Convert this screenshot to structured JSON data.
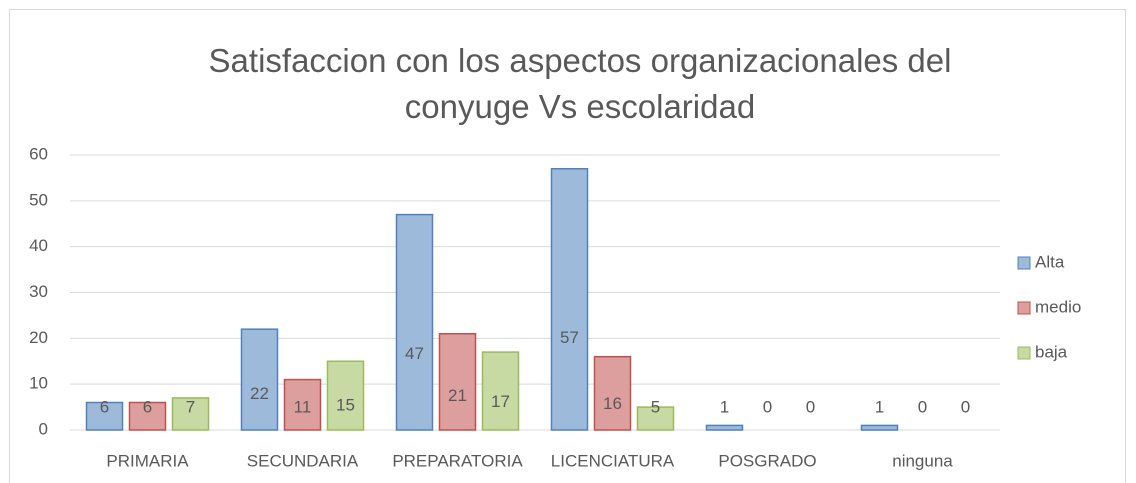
{
  "chart_data": {
    "type": "bar",
    "title": "Satisfaccion con los aspectos organizacionales del conyuge Vs escolaridad",
    "categories": [
      "PRIMARIA",
      "SECUNDARIA",
      "PREPARATORIA",
      "LICENCIATURA",
      "POSGRADO",
      "ninguna"
    ],
    "series": [
      {
        "name": "Alta",
        "color": "#4f81bd",
        "values": [
          6,
          22,
          47,
          57,
          1,
          1
        ]
      },
      {
        "name": "medio",
        "color": "#c0504d",
        "values": [
          6,
          11,
          21,
          16,
          0,
          0
        ]
      },
      {
        "name": "baja",
        "color": "#9bbb59",
        "values": [
          7,
          15,
          17,
          5,
          0,
          0
        ]
      }
    ],
    "ylim": [
      0,
      60
    ],
    "yticks": [
      0,
      10,
      20,
      30,
      40,
      50,
      60
    ],
    "grid": true,
    "legend": "right"
  }
}
